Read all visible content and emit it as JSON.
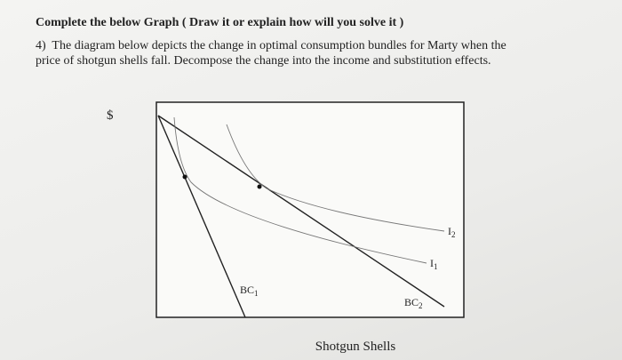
{
  "header": {
    "title": "Complete the below Graph ( Draw it or explain how will you solve it )"
  },
  "question": {
    "number": "4)",
    "lines": [
      "The diagram below depicts the change in optimal consumption bundles for Marty when the",
      "price of shotgun shells fall.  Decompose the change into the income and substitution effects."
    ]
  },
  "diagram": {
    "y_label": "$",
    "x_label": "Shotgun Shells",
    "labels": [
      {
        "text": "BC",
        "sub": "1"
      },
      {
        "text": "BC",
        "sub": "2"
      },
      {
        "text": "I",
        "sub": "2"
      },
      {
        "text": "I",
        "sub": "1"
      }
    ]
  }
}
